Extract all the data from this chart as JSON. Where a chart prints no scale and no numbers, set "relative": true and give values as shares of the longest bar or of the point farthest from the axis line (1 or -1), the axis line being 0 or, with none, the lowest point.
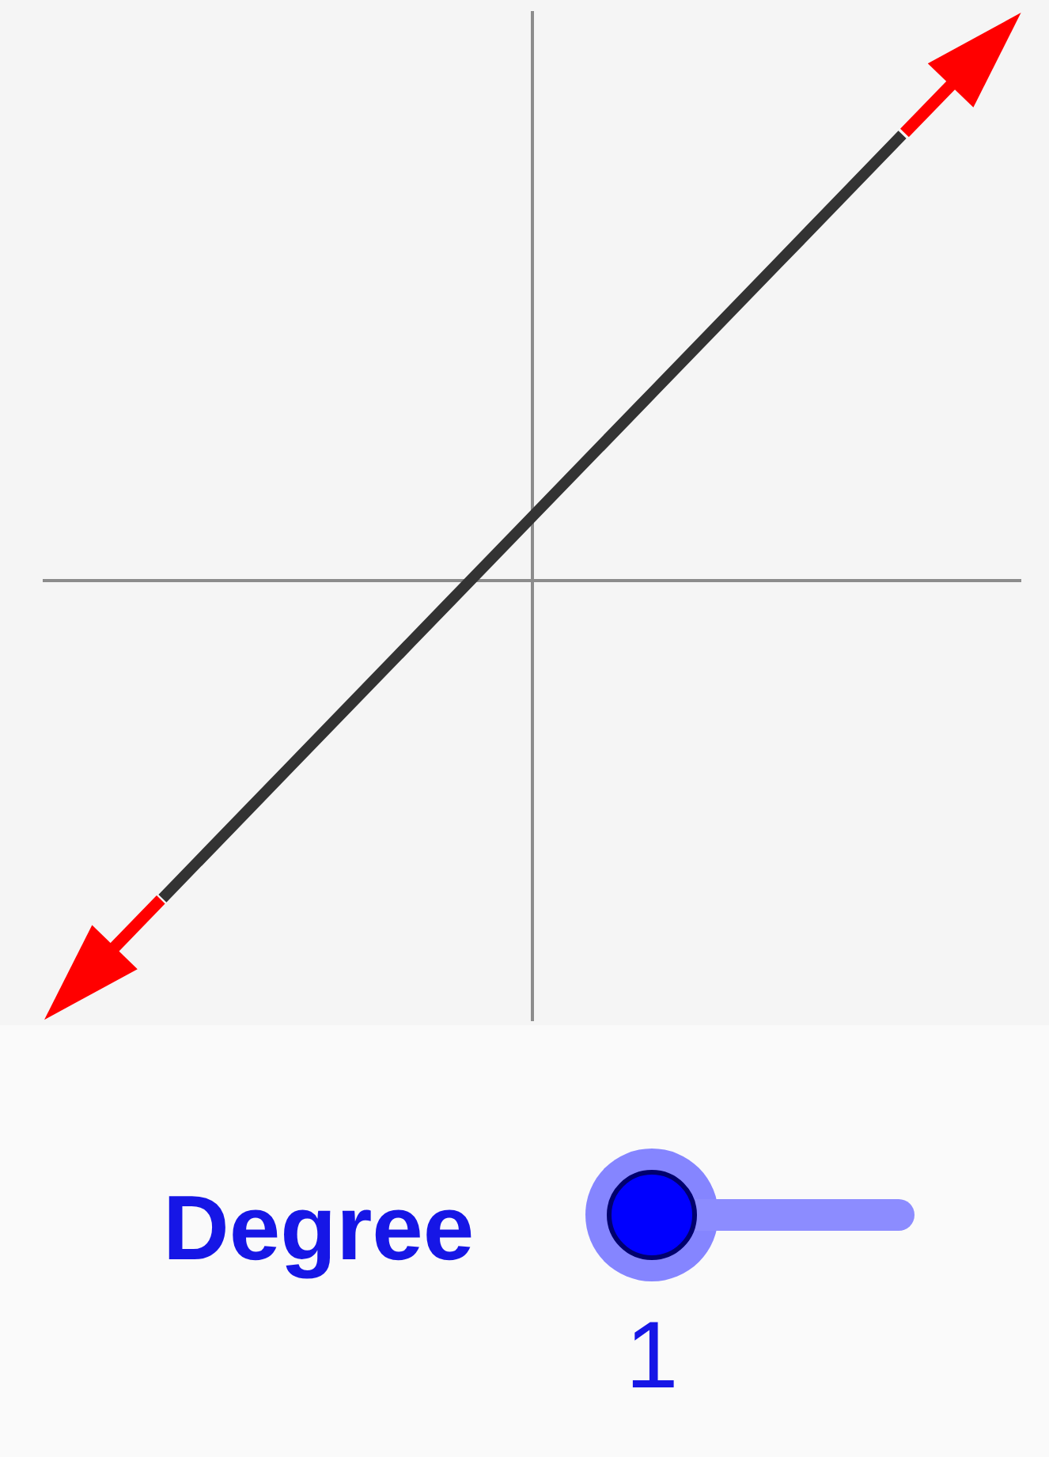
{
  "chart_data": {
    "type": "line",
    "relative": true,
    "categories": [
      null,
      null,
      null,
      null,
      null,
      null,
      null,
      null,
      null
    ],
    "series": [
      {
        "color": "#333333",
        "values": [
          null,
          -0.71,
          -0.425,
          -0.14,
          0.145,
          0.43,
          0.715,
          1,
          null
        ]
      }
    ],
    "marker": "none",
    "line_style": "solid",
    "annotations": [
      "Degree",
      "1"
    ]
  }
}
